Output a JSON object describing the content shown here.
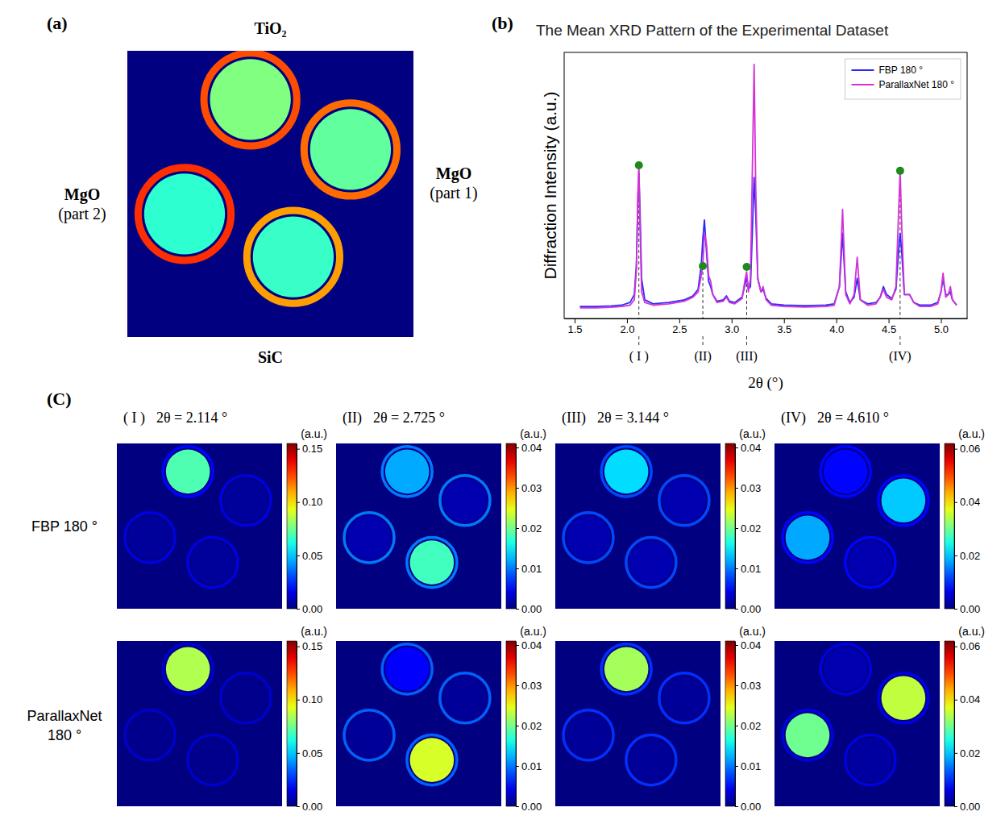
{
  "chart_data": [
    {
      "type": "image",
      "panel_label": "(a)",
      "clim": [
        0,
        1
      ],
      "regions": [
        {
          "label": "TiO₂",
          "disc": 0.5,
          "ring": 0.8
        },
        {
          "label": "MgO (part 1)",
          "disc": 0.47,
          "ring": 0.77
        },
        {
          "label": "SiC",
          "disc": 0.43,
          "ring": 0.72
        },
        {
          "label": "MgO (part 2)",
          "disc": 0.42,
          "ring": 0.83
        }
      ]
    },
    {
      "type": "line",
      "panel_label": "(b)",
      "title": "The Mean XRD Pattern of the Experimental Dataset",
      "x_label": "2θ (°)",
      "y_label": "Diffraction Intensity (a.u.)",
      "xlim": [
        1.4,
        5.25
      ],
      "ylim": [
        0,
        1
      ],
      "xticks": [
        {
          "value": 1.5,
          "label": "1.5"
        },
        {
          "value": 2,
          "label": "2.0"
        },
        {
          "value": 2.5,
          "label": "2.5"
        },
        {
          "value": 3,
          "label": "3.0"
        },
        {
          "value": 3.5,
          "label": "3.5"
        },
        {
          "value": 4,
          "label": "4.0"
        },
        {
          "value": 4.5,
          "label": "4.5"
        },
        {
          "value": 5,
          "label": "5.0"
        }
      ],
      "tick_labels": "x",
      "legend": "upper right",
      "x": [
        1.55,
        1.7,
        1.85,
        1.95,
        2.03,
        2.07,
        2.09,
        2.105,
        2.114,
        2.125,
        2.14,
        2.17,
        2.25,
        2.4,
        2.55,
        2.63,
        2.68,
        2.71,
        2.725,
        2.74,
        2.76,
        2.78,
        2.8,
        2.82,
        2.86,
        2.92,
        2.95,
        2.98,
        3.03,
        3.1,
        3.13,
        3.144,
        3.16,
        3.18,
        3.2,
        3.215,
        3.23,
        3.25,
        3.28,
        3.3,
        3.33,
        3.38,
        3.5,
        3.7,
        3.9,
        3.98,
        4.03,
        4.06,
        4.09,
        4.13,
        4.17,
        4.2,
        4.23,
        4.3,
        4.38,
        4.42,
        4.45,
        4.48,
        4.53,
        4.57,
        4.6,
        4.61,
        4.625,
        4.65,
        4.7,
        4.74,
        4.8,
        4.9,
        4.97,
        5.0,
        5.02,
        5.045,
        5.07,
        5.09,
        5.11,
        5.15
      ],
      "series": [
        {
          "name": "FBP 180 °",
          "color": "#2a2aff",
          "values": [
            0.045,
            0.045,
            0.047,
            0.05,
            0.06,
            0.09,
            0.2,
            0.45,
            0.545,
            0.4,
            0.15,
            0.07,
            0.055,
            0.06,
            0.07,
            0.085,
            0.11,
            0.2,
            0.3,
            0.37,
            0.25,
            0.14,
            0.12,
            0.09,
            0.065,
            0.07,
            0.085,
            0.065,
            0.06,
            0.08,
            0.13,
            0.155,
            0.11,
            0.12,
            0.35,
            0.53,
            0.4,
            0.15,
            0.1,
            0.11,
            0.075,
            0.055,
            0.05,
            0.048,
            0.05,
            0.055,
            0.12,
            0.32,
            0.1,
            0.06,
            0.08,
            0.15,
            0.07,
            0.055,
            0.06,
            0.08,
            0.12,
            0.09,
            0.075,
            0.11,
            0.28,
            0.32,
            0.25,
            0.09,
            0.09,
            0.06,
            0.05,
            0.05,
            0.06,
            0.1,
            0.15,
            0.09,
            0.09,
            0.1,
            0.07,
            0.05
          ]
        },
        {
          "name": "ParallaxNet 180 °",
          "color": "#d433d4",
          "values": [
            0.04,
            0.04,
            0.042,
            0.045,
            0.05,
            0.07,
            0.18,
            0.48,
            0.576,
            0.35,
            0.1,
            0.06,
            0.05,
            0.055,
            0.065,
            0.08,
            0.1,
            0.16,
            0.2,
            0.32,
            0.28,
            0.16,
            0.14,
            0.09,
            0.06,
            0.065,
            0.08,
            0.06,
            0.055,
            0.075,
            0.15,
            0.175,
            0.1,
            0.15,
            0.6,
            0.955,
            0.5,
            0.15,
            0.1,
            0.12,
            0.07,
            0.05,
            0.045,
            0.043,
            0.045,
            0.05,
            0.12,
            0.41,
            0.09,
            0.055,
            0.09,
            0.23,
            0.07,
            0.05,
            0.055,
            0.08,
            0.11,
            0.08,
            0.07,
            0.12,
            0.45,
            0.555,
            0.35,
            0.09,
            0.09,
            0.06,
            0.045,
            0.045,
            0.055,
            0.1,
            0.17,
            0.08,
            0.09,
            0.12,
            0.07,
            0.05
          ]
        }
      ],
      "annotations": [
        {
          "x": 2.114,
          "y": 0.576,
          "label": "( I )"
        },
        {
          "x": 2.725,
          "y": 0.197,
          "label": "(II)"
        },
        {
          "x": 3.144,
          "y": 0.194,
          "label": "(III)"
        },
        {
          "x": 4.61,
          "y": 0.555,
          "label": "(IV)"
        }
      ]
    },
    {
      "type": "image_grid",
      "panel_label": "(C)",
      "colorbar_label": "(a.u.)",
      "columns": [
        {
          "numeral": "( I )",
          "title": "2θ = 2.114 °",
          "colorbar_range": [
            0,
            0.155
          ],
          "colorbar_ticks": [
            {
              "value": 0,
              "label": "0.00"
            },
            {
              "value": 0.05,
              "label": "0.05"
            },
            {
              "value": 0.1,
              "label": "0.10"
            },
            {
              "value": 0.15,
              "label": "0.15"
            }
          ]
        },
        {
          "numeral": "(II)",
          "title": "2θ = 2.725 °",
          "colorbar_range": [
            0,
            0.041
          ],
          "colorbar_ticks": [
            {
              "value": 0,
              "label": "0.00"
            },
            {
              "value": 0.01,
              "label": "0.01"
            },
            {
              "value": 0.02,
              "label": "0.02"
            },
            {
              "value": 0.03,
              "label": "0.03"
            },
            {
              "value": 0.04,
              "label": "0.04"
            }
          ]
        },
        {
          "numeral": "(III)",
          "title": "2θ = 3.144 °",
          "colorbar_range": [
            0,
            0.041
          ],
          "colorbar_ticks": [
            {
              "value": 0,
              "label": "0.00"
            },
            {
              "value": 0.01,
              "label": "0.01"
            },
            {
              "value": 0.02,
              "label": "0.02"
            },
            {
              "value": 0.03,
              "label": "0.03"
            },
            {
              "value": 0.04,
              "label": "0.04"
            }
          ]
        },
        {
          "numeral": "(IV)",
          "title": "2θ = 4.610 °",
          "colorbar_range": [
            0,
            0.062
          ],
          "colorbar_ticks": [
            {
              "value": 0,
              "label": "0.00"
            },
            {
              "value": 0.02,
              "label": "0.02"
            },
            {
              "value": 0.04,
              "label": "0.04"
            },
            {
              "value": 0.06,
              "label": "0.06"
            }
          ]
        }
      ],
      "rows": [
        {
          "label": "FBP 180 °",
          "images": [
            {
              "disc": [
                0.07,
                0.004,
                0.004,
                0.004
              ],
              "ring": [
                0.02,
                0.015,
                0.015,
                0.015
              ]
            },
            {
              "disc": [
                0.012,
                0.002,
                0.018,
                0.002
              ],
              "ring": [
                0.01,
                0.01,
                0.01,
                0.01
              ]
            },
            {
              "disc": [
                0.014,
                0.002,
                0.002,
                0.002
              ],
              "ring": [
                0.008,
                0.008,
                0.008,
                0.008
              ]
            },
            {
              "disc": [
                0.008,
                0.02,
                0.003,
                0.018
              ],
              "ring": [
                0.008,
                0.008,
                0.008,
                0.008
              ]
            }
          ]
        },
        {
          "label": "ParallaxNet 180 °",
          "images": [
            {
              "disc": [
                0.085,
                0.002,
                0.002,
                0.002
              ],
              "ring": [
                0.012,
                0.012,
                0.012,
                0.012
              ]
            },
            {
              "disc": [
                0.005,
                0.001,
                0.024,
                0.001
              ],
              "ring": [
                0.009,
                0.009,
                0.009,
                0.009
              ]
            },
            {
              "disc": [
                0.022,
                0.001,
                0.001,
                0.001
              ],
              "ring": [
                0.007,
                0.007,
                0.007,
                0.007
              ]
            },
            {
              "disc": [
                0.003,
                0.035,
                0.002,
                0.03
              ],
              "ring": [
                0.006,
                0.006,
                0.006,
                0.006
              ]
            }
          ]
        }
      ]
    }
  ]
}
